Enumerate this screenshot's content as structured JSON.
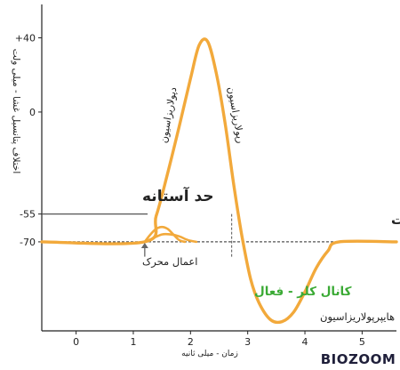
{
  "chart_data": {
    "type": "line",
    "ylabel": "اختلاف پتانسیل غشا - میلی ولت",
    "xlabel": "زمان - میلی ثانیه",
    "xlim": [
      -0.6,
      5.6
    ],
    "ylim": [
      -118,
      58
    ],
    "x_ticks": [
      0,
      1,
      2,
      3,
      4,
      5
    ],
    "y_ticks": [
      {
        "label": "+40",
        "value": 40
      },
      {
        "label": "0",
        "value": 0
      },
      {
        "label": "-55",
        "value": -55
      },
      {
        "label": "-70",
        "value": -70
      }
    ],
    "series": [
      {
        "role": "action-potential",
        "color": "#F2A93B",
        "x": [
          -0.6,
          1.2,
          1.4,
          1.6,
          1.8,
          2.0,
          2.15,
          2.3,
          2.45,
          2.6,
          2.75,
          2.9,
          3.05,
          3.2,
          3.4,
          3.6,
          3.8,
          4.0,
          4.2,
          4.4,
          4.6,
          5.6
        ],
        "y": [
          -70,
          -70,
          -56,
          -33,
          -8,
          18,
          36,
          38,
          21,
          -5,
          -38,
          -67,
          -90,
          -103,
          -112,
          -113,
          -108,
          -97,
          -84,
          -75,
          -70,
          -70
        ]
      },
      {
        "role": "subthreshold-bump-1",
        "color": "#F2A93B",
        "x": [
          1.2,
          1.3,
          1.4,
          1.5,
          1.6,
          1.7,
          1.8,
          1.9
        ],
        "y": [
          -70,
          -66,
          -63,
          -62,
          -63,
          -66,
          -69,
          -70
        ]
      },
      {
        "role": "subthreshold-bump-2",
        "color": "#F2A93B",
        "x": [
          1.2,
          1.35,
          1.5,
          1.65,
          1.8,
          1.95,
          2.1
        ],
        "y": [
          -70,
          -68,
          -66,
          -66,
          -67,
          -69,
          -70
        ]
      }
    ],
    "reference_lines": [
      {
        "role": "threshold",
        "value": -55,
        "x_end": 1.25,
        "color": "#555555"
      },
      {
        "role": "resting",
        "value": -70,
        "color": "#555555",
        "dashed": true
      },
      {
        "role": "threshold-crossing",
        "x": 2.72,
        "color": "#555555",
        "dashed": true
      }
    ],
    "annotations": {
      "threshold": "حد آستانه",
      "rest": "بازگشت به استراحت",
      "stimulus": "اعمال محرک",
      "depolarization": "دپولاریزاسیون",
      "repolarization": "رپولاریزاسیون",
      "chloride": "کانال کلر - فعال",
      "hyperpolarization": "هایپرپولاریزاسیون"
    },
    "colors": {
      "curve": "#F2A93B",
      "chloride_text": "#3BAA35",
      "axis": "#222222",
      "guide": "#555555"
    }
  },
  "logo": {
    "text": "BIOZOOM"
  }
}
